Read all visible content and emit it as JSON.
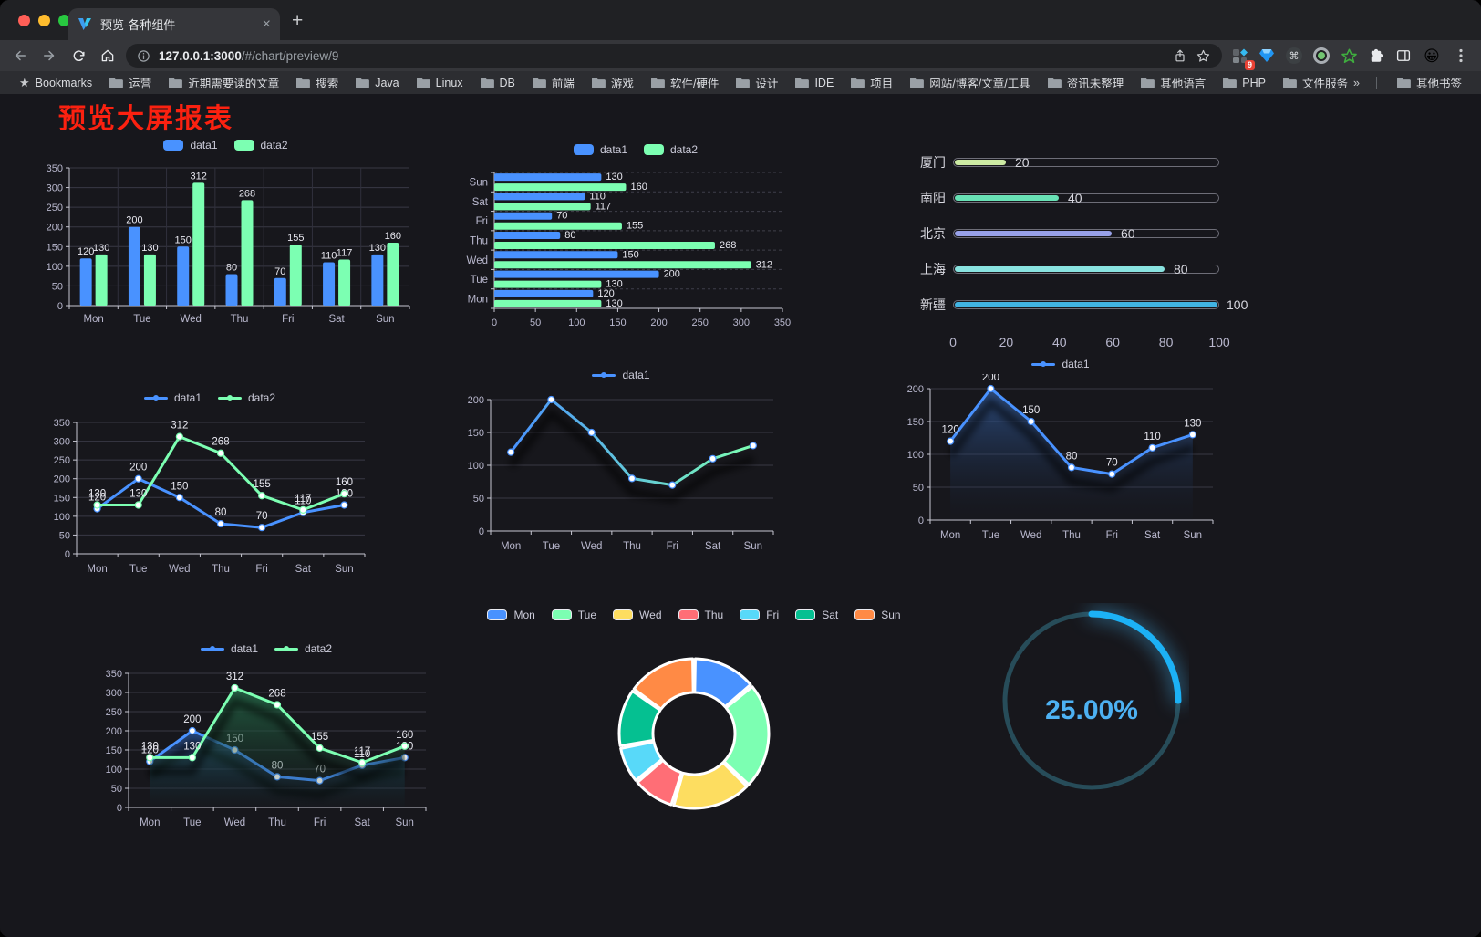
{
  "browser": {
    "traffic_lights": [
      "#ff5f57",
      "#febc2e",
      "#28c840"
    ],
    "tab": {
      "title": "预览-各种组件",
      "close_glyph": "×",
      "new_tab_glyph": "+"
    },
    "url": {
      "host": "127.0.0.1:3000",
      "path": "/#/chart/preview/9"
    },
    "extension_badge": "9",
    "bookmarks_bar": {
      "root_label": "Bookmarks",
      "root_icon": "★",
      "folders": [
        "运营",
        "近期需要读的文章",
        "搜索",
        "Java",
        "Linux",
        "DB",
        "前端",
        "游戏",
        "软件/硬件",
        "设计",
        "IDE",
        "项目",
        "网站/博客/文章/工具",
        "资讯未整理",
        "其他语言",
        "PHP",
        "文件服务器"
      ],
      "overflow_glyph": "»",
      "other_bookmarks_label": "其他书签"
    }
  },
  "page": {
    "title": "预览大屏报表",
    "title_color": "#fb2110",
    "background": "#17171c"
  },
  "chart_data": [
    {
      "type": "bar",
      "categories": [
        "Mon",
        "Tue",
        "Wed",
        "Thu",
        "Fri",
        "Sat",
        "Sun"
      ],
      "series": [
        {
          "name": "data1",
          "color": "#4992ff",
          "values": [
            120,
            200,
            150,
            80,
            70,
            110,
            130
          ]
        },
        {
          "name": "data2",
          "color": "#7cffb2",
          "values": [
            130,
            130,
            312,
            268,
            155,
            117,
            160
          ]
        }
      ],
      "ylim": [
        0,
        350
      ],
      "yticks": [
        0,
        50,
        100,
        150,
        200,
        250,
        300,
        350
      ],
      "grid": true,
      "legend_position": "top"
    },
    {
      "type": "hbar",
      "categories": [
        "Mon",
        "Tue",
        "Wed",
        "Thu",
        "Fri",
        "Sat",
        "Sun"
      ],
      "series": [
        {
          "name": "data1",
          "color": "#4992ff",
          "values": [
            120,
            200,
            150,
            80,
            70,
            110,
            130
          ]
        },
        {
          "name": "data2",
          "color": "#7cffb2",
          "values": [
            130,
            130,
            312,
            268,
            155,
            117,
            160
          ]
        }
      ],
      "xlim": [
        0,
        350
      ],
      "xticks": [
        0,
        50,
        100,
        150,
        200,
        250,
        300,
        350
      ],
      "grid": true,
      "legend_position": "top"
    },
    {
      "type": "progress",
      "rows": [
        {
          "label": "厦门",
          "value": 20,
          "color": "#cdeba3"
        },
        {
          "label": "南阳",
          "value": 40,
          "color": "#68e1b5"
        },
        {
          "label": "北京",
          "value": 60,
          "color": "#98a1e9"
        },
        {
          "label": "上海",
          "value": 80,
          "color": "#89e3e0"
        },
        {
          "label": "新疆",
          "value": 100,
          "color": "#41b4e3"
        }
      ],
      "max": 100,
      "xticks": [
        0,
        20,
        40,
        60,
        80,
        100
      ]
    },
    {
      "type": "line",
      "categories": [
        "Mon",
        "Tue",
        "Wed",
        "Thu",
        "Fri",
        "Sat",
        "Sun"
      ],
      "series": [
        {
          "name": "data1",
          "color": "#4992ff",
          "values": [
            120,
            200,
            150,
            80,
            70,
            110,
            130
          ],
          "labels": true
        },
        {
          "name": "data2",
          "color": "#7cffb2",
          "values": [
            130,
            130,
            312,
            268,
            155,
            117,
            160
          ],
          "labels": true
        }
      ],
      "ylim": [
        0,
        350
      ],
      "yticks": [
        0,
        50,
        100,
        150,
        200,
        250,
        300,
        350
      ],
      "grid": true
    },
    {
      "type": "line",
      "categories": [
        "Mon",
        "Tue",
        "Wed",
        "Thu",
        "Fri",
        "Sat",
        "Sun"
      ],
      "series": [
        {
          "name": "data1",
          "gradient": [
            "#4992ff",
            "#7cffb2"
          ],
          "values": [
            120,
            200,
            150,
            80,
            70,
            110,
            130
          ],
          "labels": false,
          "shadow": true
        }
      ],
      "ylim": [
        0,
        200
      ],
      "yticks": [
        0,
        50,
        100,
        150,
        200
      ],
      "grid": true
    },
    {
      "type": "line",
      "categories": [
        "Mon",
        "Tue",
        "Wed",
        "Thu",
        "Fri",
        "Sat",
        "Sun"
      ],
      "series": [
        {
          "name": "data1",
          "color": "#4992ff",
          "values": [
            120,
            200,
            150,
            80,
            70,
            110,
            130
          ],
          "labels": true,
          "shadow": true,
          "area": [
            "rgba(58,110,190,0.6)",
            "rgba(20,35,60,0.04)"
          ]
        }
      ],
      "ylim": [
        0,
        200
      ],
      "yticks": [
        0,
        50,
        100,
        150,
        200
      ],
      "grid": true
    },
    {
      "type": "line",
      "categories": [
        "Mon",
        "Tue",
        "Wed",
        "Thu",
        "Fri",
        "Sat",
        "Sun"
      ],
      "series": [
        {
          "name": "data1",
          "color": "#4992ff",
          "values": [
            120,
            200,
            150,
            80,
            70,
            110,
            130
          ],
          "labels": true,
          "shadow": true,
          "area": [
            "rgba(46,94,170,0.7)",
            "rgba(15,30,50,0.05)"
          ]
        },
        {
          "name": "data2",
          "color": "#7cffb2",
          "values": [
            130,
            130,
            312,
            268,
            155,
            117,
            160
          ],
          "labels": true,
          "shadow": true,
          "area": [
            "rgba(38,108,74,0.85)",
            "rgba(15,40,30,0.05)"
          ]
        }
      ],
      "ylim": [
        0,
        350
      ],
      "yticks": [
        0,
        50,
        100,
        150,
        200,
        250,
        300,
        350
      ],
      "grid": true
    },
    {
      "type": "donut",
      "legend_position": "top",
      "items": [
        {
          "name": "Mon",
          "value": 120,
          "color": "#4992ff"
        },
        {
          "name": "Tue",
          "value": 200,
          "color": "#7cffb2"
        },
        {
          "name": "Wed",
          "value": 150,
          "color": "#fddd60"
        },
        {
          "name": "Thu",
          "value": 80,
          "color": "#ff6e76"
        },
        {
          "name": "Fri",
          "value": 70,
          "color": "#58d9f9"
        },
        {
          "name": "Sat",
          "value": 110,
          "color": "#05c091"
        },
        {
          "name": "Sun",
          "value": 130,
          "color": "#ff8a45"
        }
      ]
    },
    {
      "type": "gauge",
      "value": 25,
      "max": 100,
      "display": "25.00%",
      "progress_color": "#1cb1f5",
      "track_color": "#274c59",
      "text_color": "#4db1f2"
    }
  ]
}
